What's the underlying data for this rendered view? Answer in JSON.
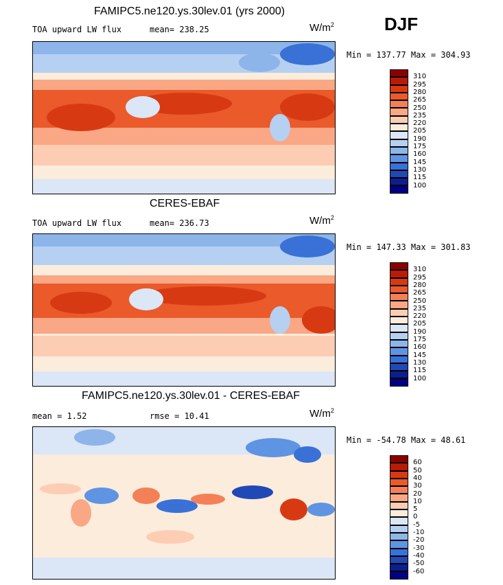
{
  "season": "DJF",
  "panels": [
    {
      "title": "FAMIPC5.ne120.ys.30lev.01 (yrs 2000)",
      "subtitle": "TOA upward LW flux",
      "mean_text": "mean= 238.25",
      "units_base": "W/m",
      "units_exp": "2",
      "minmax": "Min = 137.77 Max = 304.93",
      "levels": [
        "310",
        "295",
        "280",
        "265",
        "250",
        "235",
        "220",
        "205",
        "190",
        "175",
        "160",
        "145",
        "130",
        "115",
        "100"
      ],
      "colors": [
        "#8b0000",
        "#b81c06",
        "#d73a13",
        "#ea5a2a",
        "#f48057",
        "#f9a784",
        "#fdcdb3",
        "#fbecdc",
        "#dbe6f7",
        "#b5d0f1",
        "#8db5ea",
        "#5f94e2",
        "#3a71d6",
        "#2049b6",
        "#0b1f8f",
        "#020080"
      ]
    },
    {
      "title": "CERES-EBAF",
      "subtitle": "TOA upward LW flux",
      "mean_text": "mean= 236.73",
      "units_base": "W/m",
      "units_exp": "2",
      "minmax": "Min = 147.33 Max = 301.83",
      "levels": [
        "310",
        "295",
        "280",
        "265",
        "250",
        "235",
        "220",
        "205",
        "190",
        "175",
        "160",
        "145",
        "130",
        "115",
        "100"
      ],
      "colors": [
        "#8b0000",
        "#b81c06",
        "#d73a13",
        "#ea5a2a",
        "#f48057",
        "#f9a784",
        "#fdcdb3",
        "#fbecdc",
        "#dbe6f7",
        "#b5d0f1",
        "#8db5ea",
        "#5f94e2",
        "#3a71d6",
        "#2049b6",
        "#0b1f8f",
        "#020080"
      ]
    },
    {
      "title": "FAMIPC5.ne120.ys.30lev.01 - CERES-EBAF",
      "mean_text": "mean =   1.52",
      "rmse_text": "rmse =   10.41",
      "units_base": "W/m",
      "units_exp": "2",
      "minmax": "Min = -54.78 Max =  48.61",
      "levels": [
        "60",
        "50",
        "40",
        "30",
        "20",
        "10",
        "5",
        "0",
        "-5",
        "-10",
        "-20",
        "-30",
        "-40",
        "-50",
        "-60"
      ],
      "colors": [
        "#8b0000",
        "#b81c06",
        "#d73a13",
        "#ea5a2a",
        "#f48057",
        "#f9a784",
        "#fdcdb3",
        "#fbecdc",
        "#dbe6f7",
        "#b5d0f1",
        "#8db5ea",
        "#5f94e2",
        "#3a71d6",
        "#2049b6",
        "#0b1f8f",
        "#020080"
      ]
    }
  ]
}
